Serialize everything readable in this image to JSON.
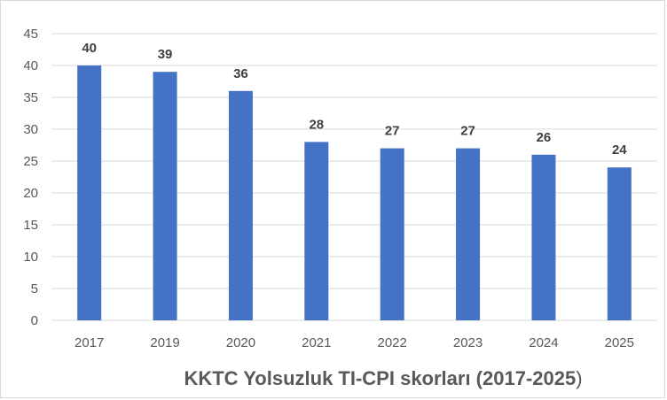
{
  "chart_data": {
    "type": "bar",
    "title": "KKTC Yolsuzluk TI-CPI skorları (2017-2025",
    "title_suffix": ")",
    "xlabel": "",
    "ylabel": "",
    "categories": [
      "2017",
      "2019",
      "2020",
      "2021",
      "2022",
      "2023",
      "2024",
      "2025"
    ],
    "values": [
      40,
      39,
      36,
      28,
      27,
      27,
      26,
      24
    ],
    "ylim": [
      0,
      45
    ],
    "yticks": [
      0,
      5,
      10,
      15,
      20,
      25,
      30,
      35,
      40,
      45
    ],
    "grid": true,
    "legend": "none",
    "bar_color": "#4472C4",
    "grid_color": "#d9d9d9"
  }
}
